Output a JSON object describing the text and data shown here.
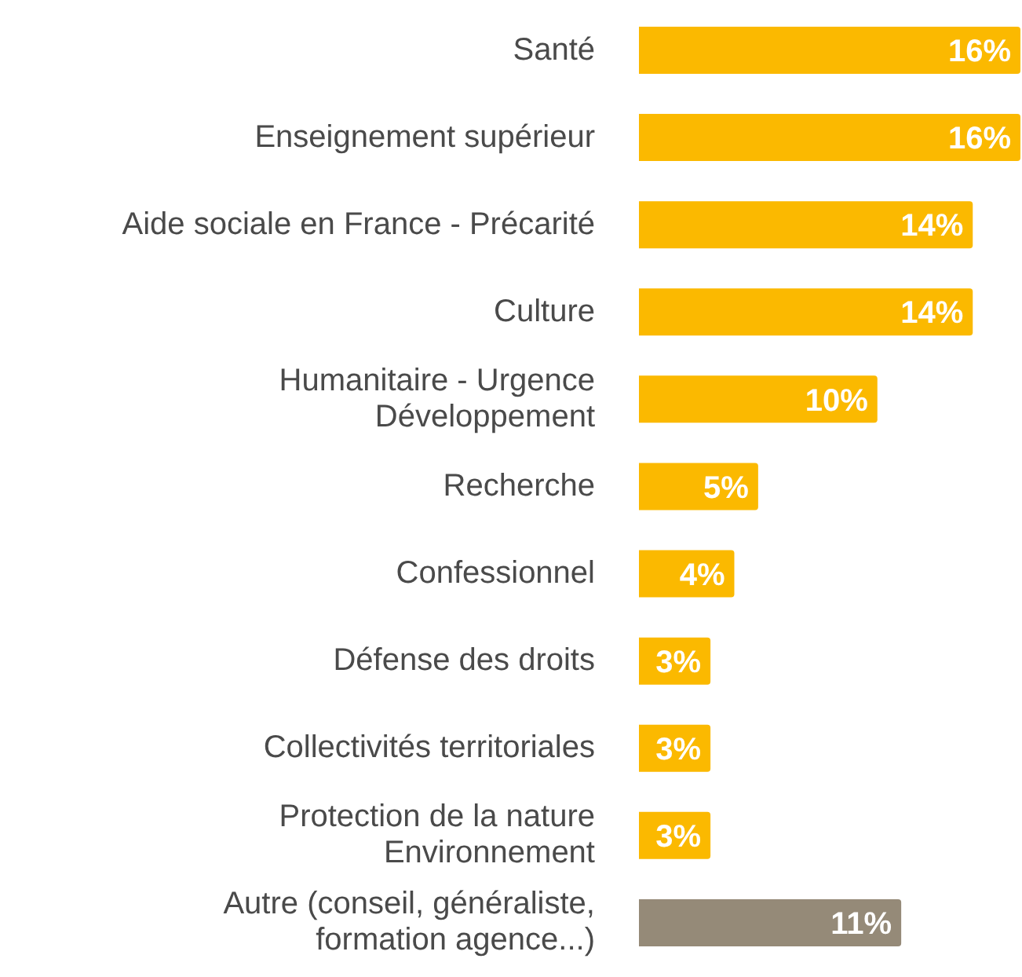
{
  "chart_data": {
    "type": "bar",
    "orientation": "horizontal",
    "categories": [
      "Santé",
      "Enseignement supérieur",
      "Aide sociale en France - Précarité",
      "Culture",
      "Humanitaire - Urgence\nDéveloppement",
      "Recherche",
      "Confessionnel",
      "Défense des droits",
      "Collectivités territoriales",
      "Protection de la nature\nEnvironnement",
      "Autre (conseil, généraliste,\nformation agence...)"
    ],
    "values": [
      16,
      16,
      14,
      14,
      10,
      5,
      4,
      3,
      3,
      3,
      11
    ],
    "value_labels": [
      "16%",
      "16%",
      "14%",
      "14%",
      "10%",
      "5%",
      "4%",
      "3%",
      "3%",
      "3%",
      "11%"
    ],
    "colors": [
      "#fbb900",
      "#fbb900",
      "#fbb900",
      "#fbb900",
      "#fbb900",
      "#fbb900",
      "#fbb900",
      "#fbb900",
      "#fbb900",
      "#fbb900",
      "#958a78"
    ],
    "grid": false,
    "legend": false
  }
}
